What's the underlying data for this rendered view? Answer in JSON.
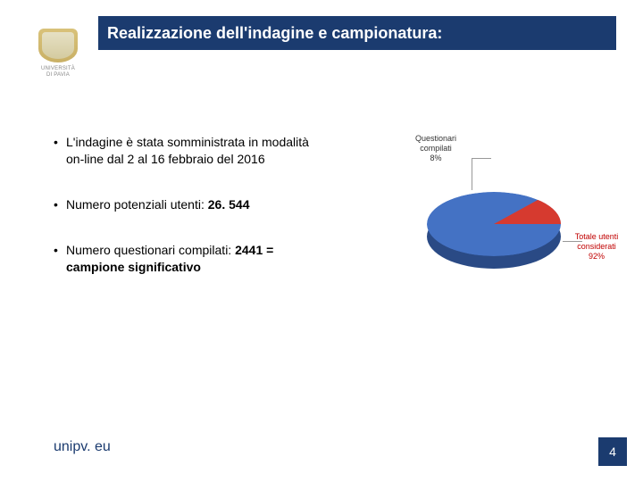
{
  "header": {
    "title": "Realizzazione dell'indagine e campionatura:",
    "background_color": "#1b3b6f",
    "text_color": "#ffffff",
    "title_fontsize": 18
  },
  "logo": {
    "line1": "UNIVERSITÀ",
    "line2": "DI PAVIA"
  },
  "bullets": [
    {
      "prefix": "L'indagine è stata somministrata in modalità on-line dal 2 al 16 febbraio del 2016",
      "bold": ""
    },
    {
      "prefix": "Numero potenziali utenti: ",
      "bold": "26. 544"
    },
    {
      "prefix": "Numero questionari compilati: ",
      "bold": "2441 = campione significativo"
    }
  ],
  "chart": {
    "type": "pie-3d",
    "slices": [
      {
        "label_line1": "Questionari",
        "label_line2": "compilati",
        "percent_text": "8%",
        "value": 8,
        "color": "#d63a2f",
        "label_color": "#333333"
      },
      {
        "label_line1": "Totale utenti",
        "label_line2": "considerati",
        "percent_text": "92%",
        "value": 92,
        "color": "#4472c4",
        "label_color": "#c00000"
      }
    ],
    "depth_color": "#2a4a85",
    "background_color": "#ffffff",
    "label_fontsize": 9
  },
  "footer": {
    "url": "unipv. eu",
    "url_color": "#1b3b6f",
    "page_number": "4",
    "page_bg": "#1b3b6f"
  }
}
